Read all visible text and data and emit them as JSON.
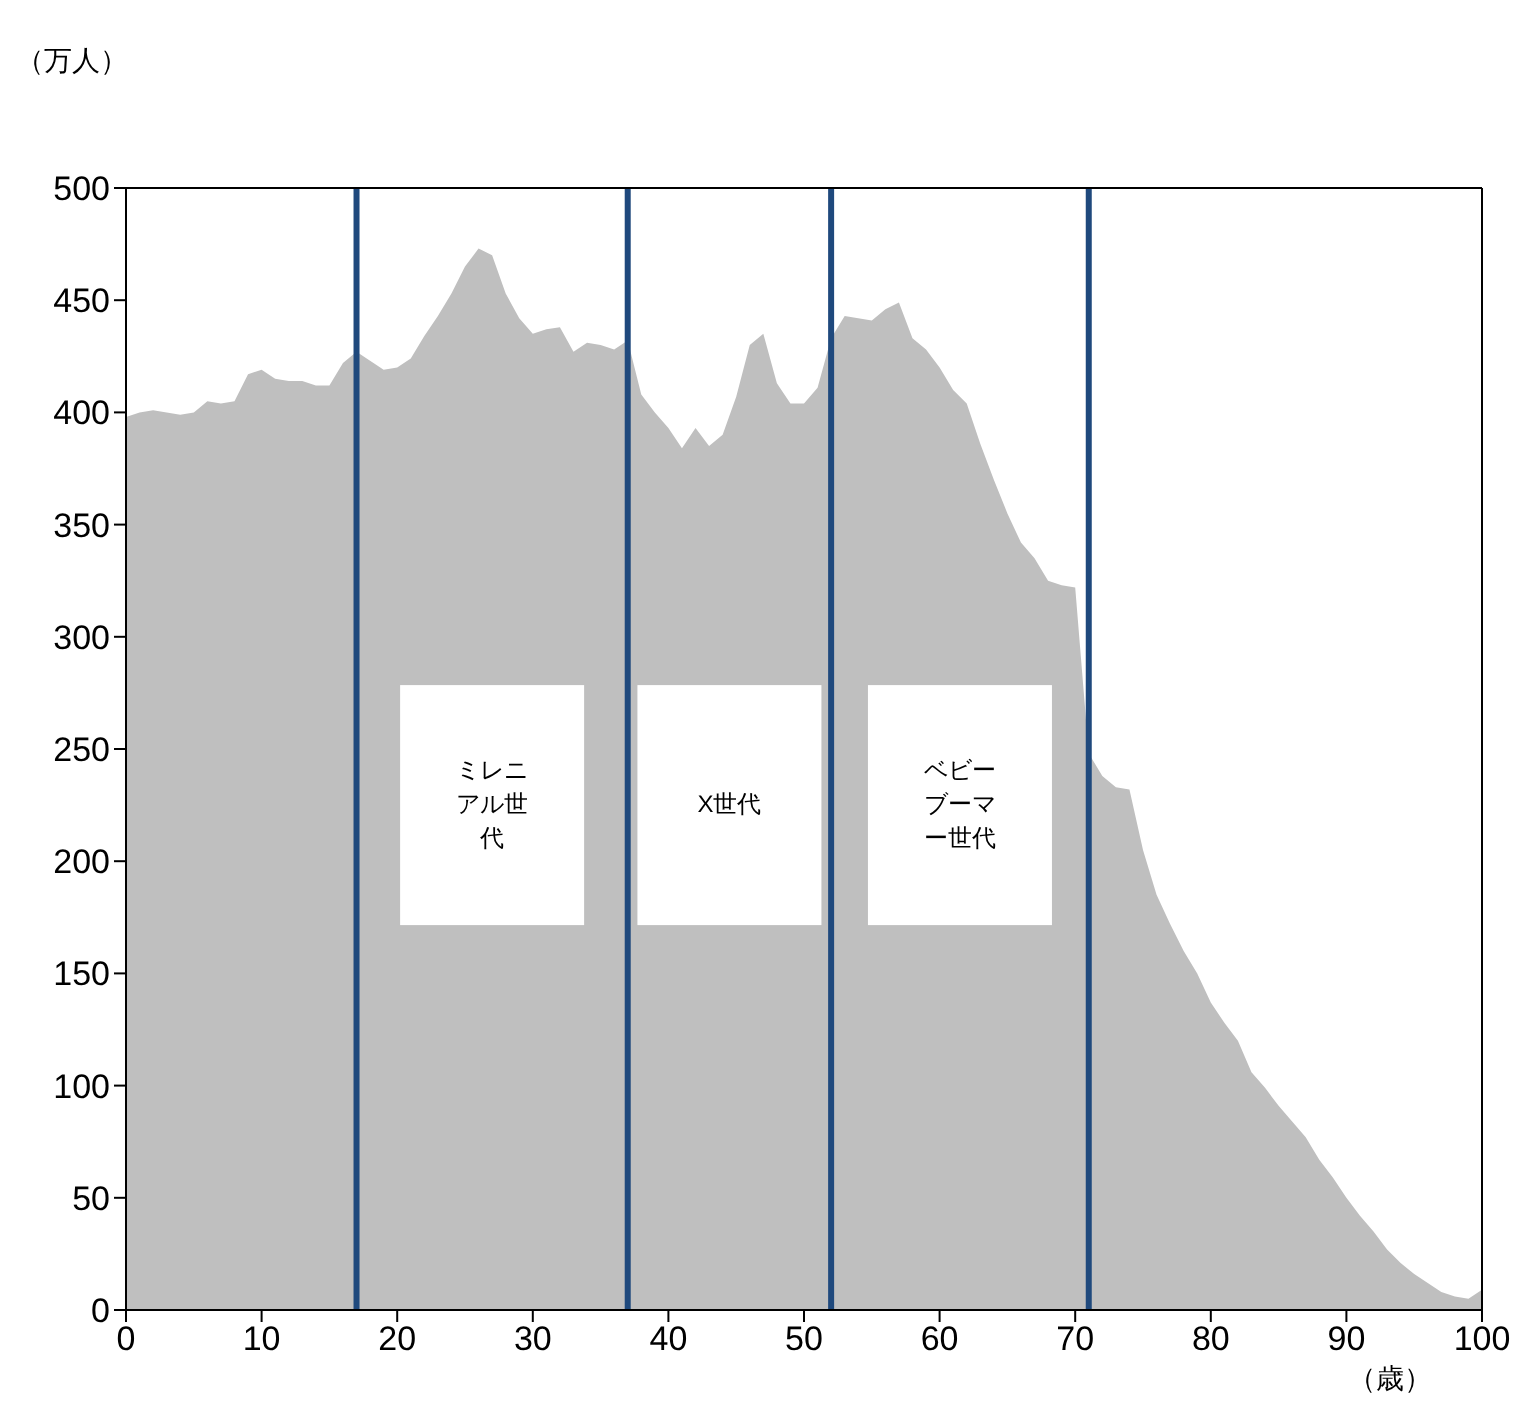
{
  "chart_data": {
    "type": "area",
    "ylabel": "（万人）",
    "xlabel": "（歳）",
    "x": [
      0,
      1,
      2,
      3,
      4,
      5,
      6,
      7,
      8,
      9,
      10,
      11,
      12,
      13,
      14,
      15,
      16,
      17,
      18,
      19,
      20,
      21,
      22,
      23,
      24,
      25,
      26,
      27,
      28,
      29,
      30,
      31,
      32,
      33,
      34,
      35,
      36,
      37,
      38,
      39,
      40,
      41,
      42,
      43,
      44,
      45,
      46,
      47,
      48,
      49,
      50,
      51,
      52,
      53,
      54,
      55,
      56,
      57,
      58,
      59,
      60,
      61,
      62,
      63,
      64,
      65,
      66,
      67,
      68,
      69,
      70,
      71,
      72,
      73,
      74,
      75,
      76,
      77,
      78,
      79,
      80,
      81,
      82,
      83,
      84,
      85,
      86,
      87,
      88,
      89,
      90,
      91,
      92,
      93,
      94,
      95,
      96,
      97,
      98,
      99,
      100
    ],
    "series": [
      {
        "color": "#bfbfbf",
        "values": [
          398,
          400,
          401,
          400,
          399,
          400,
          405,
          404,
          405,
          417,
          419,
          415,
          414,
          414,
          412,
          412,
          422,
          427,
          423,
          419,
          420,
          424,
          434,
          443,
          453,
          465,
          473,
          470,
          453,
          442,
          435,
          437,
          438,
          427,
          431,
          430,
          428,
          432,
          408,
          400,
          393,
          384,
          393,
          385,
          390,
          407,
          430,
          435,
          413,
          404,
          404,
          411,
          433,
          443,
          442,
          441,
          446,
          449,
          433,
          428,
          420,
          410,
          404,
          386,
          370,
          355,
          342,
          335,
          325,
          323,
          322,
          248,
          238,
          233,
          232,
          205,
          185,
          172,
          160,
          150,
          137,
          128,
          120,
          106,
          99,
          91,
          84,
          77,
          67,
          59,
          50,
          42,
          35,
          27,
          21,
          16,
          12,
          8,
          6,
          5,
          9
        ]
      }
    ],
    "xlim": [
      0,
      100
    ],
    "xticks": [
      0,
      10,
      20,
      30,
      40,
      50,
      60,
      70,
      80,
      90,
      100
    ],
    "ylim": [
      0,
      500
    ],
    "yticks": [
      0,
      50,
      100,
      150,
      200,
      250,
      300,
      350,
      400,
      450,
      500
    ],
    "ref_lines": [
      {
        "axis": "x",
        "value": 17,
        "color": "#1f497d"
      },
      {
        "axis": "x",
        "value": 37,
        "color": "#1f497d"
      },
      {
        "axis": "x",
        "value": 52,
        "color": "#1f497d"
      },
      {
        "axis": "x",
        "value": 71,
        "color": "#1f497d"
      }
    ],
    "annotations": [
      "ミレニアル世代",
      "X世代",
      "ベビーブーマー世代"
    ],
    "grid": false,
    "legend": false
  }
}
